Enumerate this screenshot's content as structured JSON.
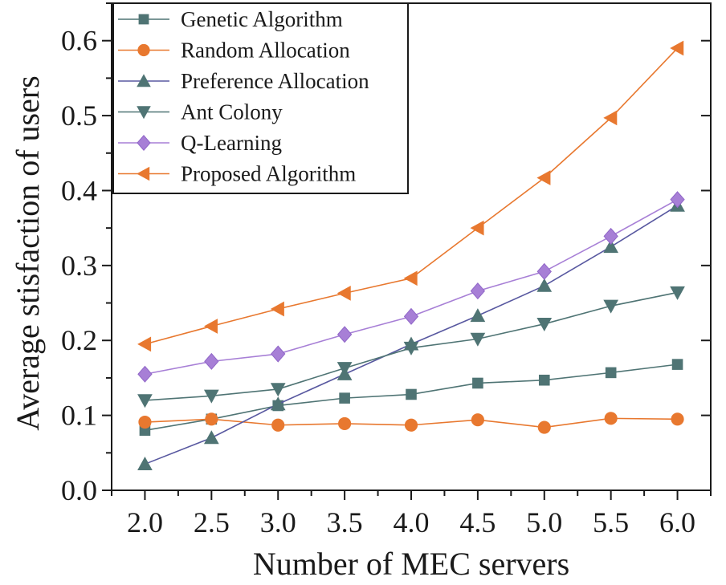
{
  "chart_data": {
    "type": "line",
    "title": "",
    "xlabel": "Number of MEC servers",
    "ylabel": "Average stisfaction of users",
    "x": [
      2.0,
      2.5,
      3.0,
      3.5,
      4.0,
      4.5,
      5.0,
      5.5,
      6.0
    ],
    "xlim": [
      1.75,
      6.25
    ],
    "ylim": [
      0.0,
      0.65
    ],
    "x_ticks": [
      "2.0",
      "2.5",
      "3.0",
      "3.5",
      "4.0",
      "4.5",
      "5.0",
      "5.5",
      "6.0"
    ],
    "y_ticks": [
      "0.0",
      "0.1",
      "0.2",
      "0.3",
      "0.4",
      "0.5",
      "0.6"
    ],
    "grid": false,
    "legend_position": "top-left",
    "series": [
      {
        "name": "Genetic Algorithm",
        "color": "#4f7474",
        "marker": "square",
        "values": [
          0.08,
          0.095,
          0.113,
          0.123,
          0.128,
          0.143,
          0.147,
          0.157,
          0.168
        ]
      },
      {
        "name": "Random Allocation",
        "color": "#e8782f",
        "marker": "circle",
        "values": [
          0.091,
          0.095,
          0.087,
          0.089,
          0.087,
          0.094,
          0.084,
          0.096,
          0.095
        ]
      },
      {
        "name": "Preference Allocation",
        "color": "#4f7474",
        "line_color": "#5858a0",
        "marker": "triangle-up",
        "values": [
          0.035,
          0.07,
          0.115,
          0.155,
          0.195,
          0.233,
          0.273,
          0.325,
          0.38
        ]
      },
      {
        "name": "Ant Colony",
        "color": "#4f7474",
        "marker": "triangle-down",
        "values": [
          0.12,
          0.126,
          0.135,
          0.163,
          0.19,
          0.202,
          0.222,
          0.246,
          0.264
        ]
      },
      {
        "name": "Q-Learning",
        "color": "#a77fd6",
        "marker": "diamond",
        "values": [
          0.155,
          0.172,
          0.182,
          0.208,
          0.232,
          0.266,
          0.292,
          0.339,
          0.388
        ]
      },
      {
        "name": "Proposed Algorithm",
        "color": "#e8782f",
        "marker": "triangle-left",
        "values": [
          0.195,
          0.219,
          0.242,
          0.263,
          0.283,
          0.35,
          0.417,
          0.497,
          0.59
        ]
      }
    ]
  }
}
